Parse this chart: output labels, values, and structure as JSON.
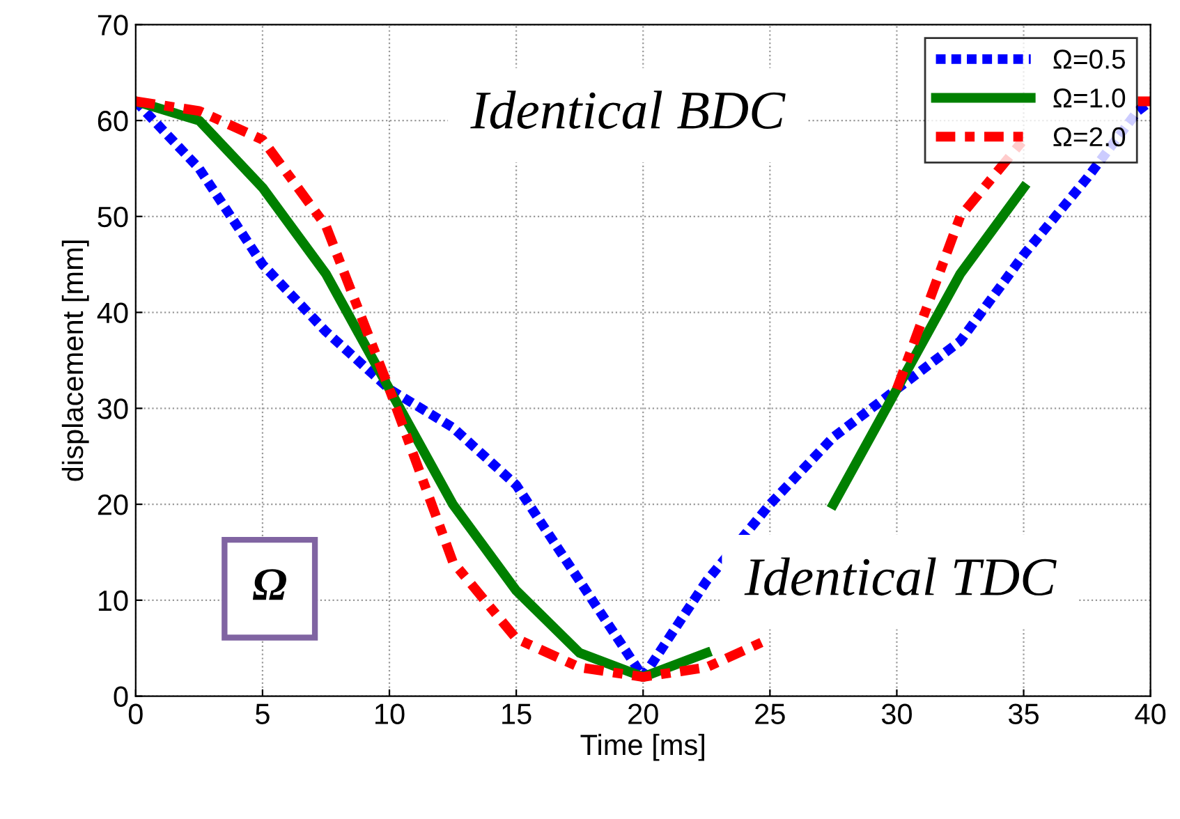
{
  "chart_data": {
    "type": "line",
    "xlabel": "Time [ms]",
    "ylabel": "displacement [mm]",
    "x": [
      0,
      2.5,
      5,
      7.5,
      10,
      12.5,
      15,
      17.5,
      20,
      22.5,
      25,
      27.5,
      30,
      32.5,
      35,
      37.5,
      39.5,
      40
    ],
    "series": [
      {
        "name": "Ω=0.5",
        "color": "#0000ff",
        "line_style": "dotted",
        "values": [
          62,
          55,
          45,
          38,
          32,
          28,
          22,
          12,
          2,
          12,
          20,
          27,
          32,
          37,
          46,
          54,
          61,
          62
        ]
      },
      {
        "name": "Ω=1.0",
        "color": "#008000",
        "line_style": "solid",
        "values": [
          62,
          60,
          53,
          44,
          32,
          20,
          11,
          4.5,
          2,
          4.5,
          null,
          20,
          32,
          44,
          53,
          null,
          null,
          null
        ]
      },
      {
        "name": "Ω=2.0",
        "color": "#ff0000",
        "line_style": "dashed",
        "values": [
          62,
          61,
          58,
          49,
          32,
          14,
          6,
          3,
          2,
          3,
          6,
          null,
          32,
          50,
          58,
          null,
          62,
          62
        ]
      }
    ],
    "xlim": [
      0,
      40
    ],
    "ylim": [
      0,
      70
    ],
    "xticks": [
      0,
      5,
      10,
      15,
      20,
      25,
      30,
      35,
      40
    ],
    "yticks": [
      0,
      10,
      20,
      30,
      40,
      50,
      60,
      70
    ],
    "grid": true,
    "legend": "top right",
    "marker": "none",
    "annotations": [
      "Identical BDC",
      "Identical TDC",
      "Ω"
    ]
  }
}
